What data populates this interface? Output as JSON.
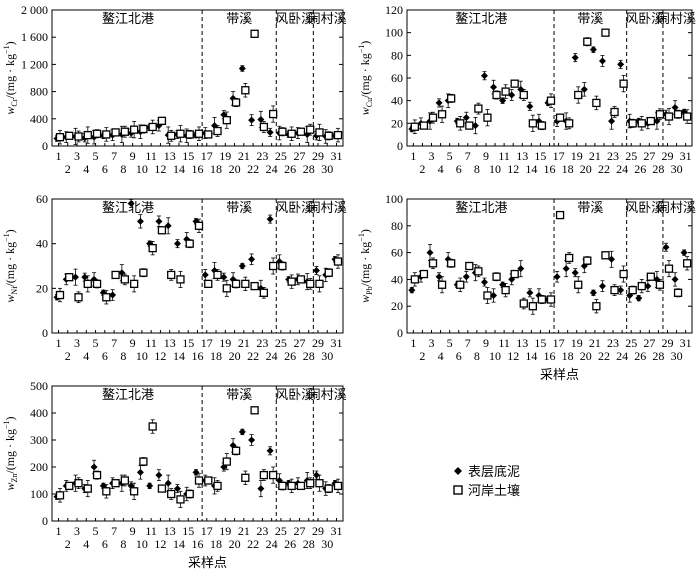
{
  "legend": {
    "sediment": "表层底泥",
    "soil": "河岸土壤"
  },
  "chart_data": [
    {
      "type": "scatter",
      "element": "Cr",
      "ylabel_prefix": "w",
      "ylabel_unit": "/(mg · kg",
      "ylim": [
        0,
        2000
      ],
      "yticks": [
        "0",
        "400",
        "800",
        "1 200",
        "1 600",
        "2 000"
      ],
      "ytick_values": [
        0,
        400,
        800,
        1200,
        1600,
        2000
      ],
      "regions": [
        "鳌江北港",
        "带溪",
        "风卧溪",
        "闹村溪"
      ],
      "x_labels_top": [
        "1",
        "3",
        "5",
        "7",
        "9",
        "11",
        "13",
        "15",
        "17",
        "19",
        "21",
        "23",
        "25",
        "27",
        "29",
        "31"
      ],
      "x_labels_bottom": [
        "2",
        "4",
        "6",
        "8",
        "10",
        "12",
        "14",
        "16",
        "18",
        "20",
        "22",
        "24",
        "26",
        "28",
        "30"
      ],
      "xlabel": "",
      "series": [
        {
          "name": "表层底泥",
          "values": [
            110,
            130,
            140,
            120,
            130,
            150,
            160,
            170,
            190,
            210,
            270,
            300,
            160,
            170,
            150,
            160,
            190,
            300,
            460,
            700,
            1140,
            380,
            390,
            200,
            190,
            170,
            190,
            170,
            150,
            140,
            150
          ]
        },
        {
          "name": "河岸土壤",
          "values": [
            130,
            150,
            140,
            160,
            180,
            170,
            200,
            210,
            240,
            250,
            280,
            370,
            150,
            180,
            170,
            180,
            170,
            220,
            380,
            640,
            820,
            1650,
            280,
            470,
            210,
            180,
            210,
            240,
            200,
            150,
            160
          ]
        }
      ]
    },
    {
      "type": "scatter",
      "element": "Cu",
      "ylabel_prefix": "w",
      "ylabel_unit": "/(mg · kg",
      "ylim": [
        0,
        120
      ],
      "yticks": [
        "0",
        "20",
        "40",
        "60",
        "80",
        "100",
        "120"
      ],
      "ytick_values": [
        0,
        20,
        40,
        60,
        80,
        100,
        120
      ],
      "regions": [
        "鳌江北港",
        "带溪",
        "风卧溪",
        "闹村溪"
      ],
      "x_labels_top": [
        "1",
        "3",
        "5",
        "7",
        "9",
        "11",
        "13",
        "15",
        "17",
        "19",
        "21",
        "23",
        "25",
        "27",
        "29",
        "31"
      ],
      "x_labels_bottom": [
        "2",
        "4",
        "6",
        "8",
        "10",
        "12",
        "14",
        "16",
        "18",
        "20",
        "22",
        "24",
        "26",
        "28",
        "30"
      ],
      "xlabel": "",
      "series": [
        {
          "name": "表层底泥",
          "values": [
            15,
            20,
            22,
            38,
            40,
            22,
            25,
            18,
            62,
            52,
            40,
            45,
            50,
            35,
            22,
            38,
            22,
            22,
            78,
            50,
            85,
            75,
            22,
            72,
            22,
            22,
            20,
            22,
            28,
            34,
            30
          ]
        },
        {
          "name": "河岸土壤",
          "values": [
            17,
            18,
            25,
            28,
            42,
            20,
            18,
            33,
            25,
            45,
            48,
            55,
            45,
            20,
            18,
            40,
            25,
            20,
            45,
            92,
            38,
            100,
            30,
            55,
            20,
            20,
            22,
            28,
            26,
            28,
            26
          ]
        }
      ]
    },
    {
      "type": "scatter",
      "element": "Ni",
      "ylabel_prefix": "w",
      "ylabel_unit": "/(mg · kg",
      "ylim": [
        0,
        60
      ],
      "yticks": [
        "0",
        "20",
        "40",
        "60"
      ],
      "ytick_values": [
        0,
        20,
        40,
        60
      ],
      "regions": [
        "鳌江北港",
        "带溪",
        "风卧溪",
        "闹村溪"
      ],
      "x_labels_top": [
        "1",
        "3",
        "5",
        "7",
        "9",
        "11",
        "13",
        "15",
        "17",
        "19",
        "21",
        "23",
        "25",
        "27",
        "29",
        "31"
      ],
      "x_labels_bottom": [
        "2",
        "4",
        "6",
        "8",
        "10",
        "12",
        "14",
        "16",
        "18",
        "20",
        "22",
        "24",
        "26",
        "28",
        "30"
      ],
      "xlabel": "",
      "series": [
        {
          "name": "表层底泥",
          "values": [
            16,
            24,
            25,
            25,
            24,
            18,
            17,
            27,
            58,
            50,
            40,
            50,
            48,
            40,
            42,
            50,
            26,
            28,
            25,
            24,
            30,
            33,
            20,
            51,
            32,
            24,
            24,
            23,
            28,
            26,
            33
          ]
        },
        {
          "name": "河岸土壤",
          "values": [
            17,
            25,
            16,
            22,
            22,
            16,
            26,
            24,
            22,
            27,
            38,
            46,
            26,
            24,
            40,
            48,
            22,
            26,
            20,
            22,
            22,
            21,
            18,
            30,
            30,
            23,
            24,
            22,
            22,
            27,
            32
          ]
        }
      ]
    },
    {
      "type": "scatter",
      "element": "Pb",
      "ylabel_prefix": "w",
      "ylabel_unit": "/(mg · kg",
      "ylim": [
        0,
        100
      ],
      "yticks": [
        "0",
        "20",
        "40",
        "60",
        "80",
        "100"
      ],
      "ytick_values": [
        0,
        20,
        40,
        60,
        80,
        100
      ],
      "regions": [
        "鳌江北港",
        "带溪",
        "风卧溪",
        "闹村溪"
      ],
      "x_labels_top": [
        "1",
        "3",
        "5",
        "7",
        "9",
        "11",
        "13",
        "15",
        "17",
        "19",
        "21",
        "23",
        "25",
        "27",
        "29",
        "31"
      ],
      "x_labels_bottom": [
        "2",
        "4",
        "6",
        "8",
        "10",
        "12",
        "14",
        "16",
        "18",
        "20",
        "22",
        "24",
        "26",
        "28",
        "30"
      ],
      "xlabel": "采样点",
      "series": [
        {
          "name": "表层底泥",
          "values": [
            32,
            42,
            60,
            42,
            55,
            36,
            42,
            45,
            38,
            28,
            36,
            40,
            48,
            30,
            28,
            25,
            42,
            48,
            45,
            50,
            30,
            35,
            55,
            32,
            28,
            26,
            35,
            40,
            64,
            40,
            60
          ]
        },
        {
          "name": "河岸土壤",
          "values": [
            40,
            44,
            52,
            36,
            52,
            36,
            50,
            46,
            28,
            42,
            32,
            44,
            22,
            20,
            25,
            25,
            88,
            56,
            36,
            54,
            20,
            58,
            32,
            44,
            32,
            35,
            42,
            36,
            48,
            30,
            52
          ]
        }
      ]
    },
    {
      "type": "scatter",
      "element": "Zn",
      "ylabel_prefix": "w",
      "ylabel_unit": "/(mg · kg",
      "ylim": [
        0,
        500
      ],
      "yticks": [
        "0",
        "100",
        "200",
        "300",
        "400",
        "500"
      ],
      "ytick_values": [
        0,
        100,
        200,
        300,
        400,
        500
      ],
      "regions": [
        "鳌江北港",
        "带溪",
        "风卧溪",
        "闹村溪"
      ],
      "x_labels_top": [
        "1",
        "3",
        "5",
        "7",
        "9",
        "11",
        "13",
        "15",
        "17",
        "19",
        "21",
        "23",
        "25",
        "27",
        "29",
        "31"
      ],
      "x_labels_bottom": [
        "2",
        "4",
        "6",
        "8",
        "10",
        "12",
        "14",
        "16",
        "18",
        "20",
        "22",
        "24",
        "26",
        "28",
        "30"
      ],
      "xlabel": "采样点",
      "series": [
        {
          "name": "表层底泥",
          "values": [
            90,
            130,
            140,
            120,
            200,
            130,
            140,
            140,
            130,
            180,
            130,
            170,
            140,
            120,
            100,
            180,
            150,
            130,
            200,
            280,
            330,
            300,
            120,
            260,
            150,
            140,
            140,
            150,
            170,
            120,
            140
          ]
        },
        {
          "name": "河岸土壤",
          "values": [
            95,
            130,
            140,
            120,
            170,
            110,
            140,
            150,
            110,
            220,
            350,
            120,
            100,
            80,
            100,
            150,
            150,
            130,
            220,
            260,
            160,
            410,
            170,
            170,
            130,
            130,
            130,
            140,
            140,
            120,
            130
          ]
        }
      ]
    }
  ]
}
